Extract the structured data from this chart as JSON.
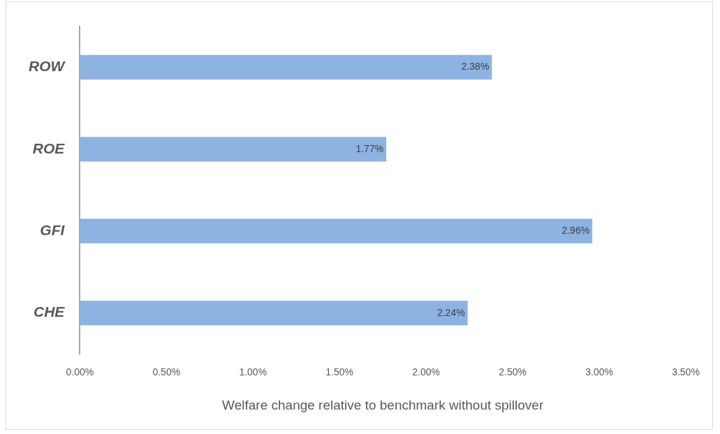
{
  "chart_data": {
    "type": "bar",
    "orientation": "horizontal",
    "categories": [
      "ROW",
      "ROE",
      "GFI",
      "CHE"
    ],
    "values": [
      2.38,
      1.77,
      2.96,
      2.24
    ],
    "value_labels": [
      "2.38%",
      "1.77%",
      "2.96%",
      "2.24%"
    ],
    "color": "#8db3e2",
    "xlabel": "Welfare change relative to benchmark without spillover",
    "xlim": [
      0,
      3.5
    ],
    "xticks": [
      {
        "value": 0,
        "label": "0.00%"
      },
      {
        "value": 0.5,
        "label": "0.50%"
      },
      {
        "value": 1,
        "label": "1.00%"
      },
      {
        "value": 1.5,
        "label": "1.50%"
      },
      {
        "value": 2,
        "label": "2.00%"
      },
      {
        "value": 2.5,
        "label": "2.50%"
      },
      {
        "value": 3,
        "label": "3.00%"
      },
      {
        "value": 3.5,
        "label": "3.50%"
      }
    ],
    "grid": false,
    "legend": false
  }
}
